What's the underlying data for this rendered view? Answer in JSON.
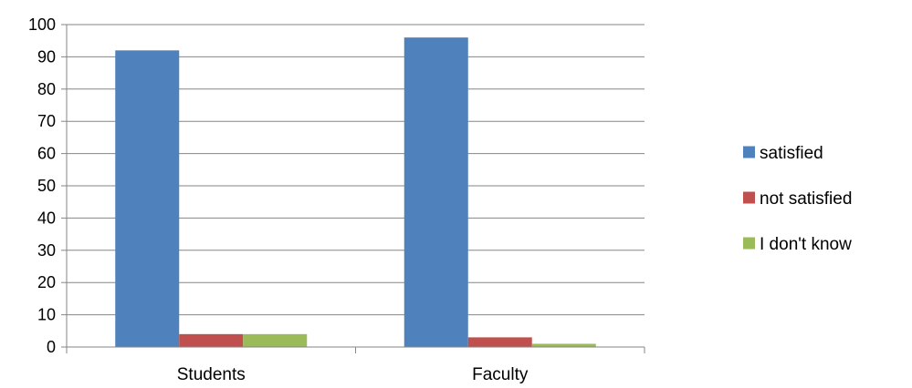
{
  "chart_data": {
    "type": "bar",
    "title": "",
    "xlabel": "",
    "ylabel": "",
    "categories": [
      "Students",
      "Faculty"
    ],
    "series": [
      {
        "name": "satisfied",
        "values": [
          92,
          96
        ],
        "color": "#4F81BD"
      },
      {
        "name": "not satisfied",
        "values": [
          4,
          3
        ],
        "color": "#C0504D"
      },
      {
        "name": "I don't know",
        "values": [
          4,
          1
        ],
        "color": "#9BBB59"
      }
    ],
    "ylim": [
      0,
      100
    ],
    "yticks": [
      0,
      10,
      20,
      30,
      40,
      50,
      60,
      70,
      80,
      90,
      100
    ],
    "grid": true,
    "legend_position": "right",
    "gridline_color": "#868686",
    "axis_color": "#868686"
  }
}
